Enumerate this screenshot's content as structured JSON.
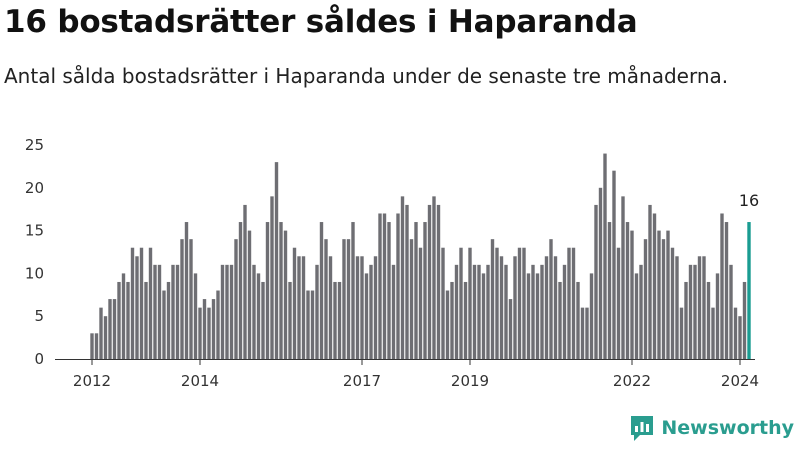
{
  "header": {
    "title": "16 bostadsrätter såldes i Haparanda",
    "subtitle": "Antal sålda bostadsrätter i Haparanda under de senaste tre månaderna."
  },
  "brand": {
    "name": "Newsworthy",
    "color": "#2a9d8f",
    "icon": "newsworthy-logo-icon"
  },
  "colors": {
    "bar": "#6e6e73",
    "highlight": "#1a9c92",
    "axis": "#333333",
    "grid": "#dddddd"
  },
  "chart_data": {
    "type": "bar",
    "title": "16 bostadsrätter såldes i Haparanda",
    "xlabel": "",
    "ylabel": "",
    "ylim": [
      0,
      25
    ],
    "y_ticks": [
      0,
      5,
      10,
      15,
      20,
      25
    ],
    "x_ticks": [
      {
        "label": "2012",
        "index": 0
      },
      {
        "label": "2014",
        "index": 24
      },
      {
        "label": "2017",
        "index": 60
      },
      {
        "label": "2019",
        "index": 84
      },
      {
        "label": "2022",
        "index": 120
      },
      {
        "label": "2024",
        "index": 144
      }
    ],
    "start": "2012-01",
    "values": [
      3,
      3,
      6,
      5,
      7,
      7,
      9,
      10,
      9,
      13,
      12,
      13,
      9,
      13,
      11,
      11,
      8,
      9,
      11,
      11,
      14,
      16,
      14,
      10,
      6,
      7,
      6,
      7,
      8,
      11,
      11,
      11,
      14,
      16,
      18,
      15,
      11,
      10,
      9,
      16,
      19,
      23,
      16,
      15,
      9,
      13,
      12,
      12,
      8,
      8,
      11,
      16,
      14,
      12,
      9,
      9,
      14,
      14,
      16,
      12,
      12,
      10,
      11,
      12,
      17,
      17,
      16,
      11,
      17,
      19,
      18,
      14,
      16,
      13,
      16,
      18,
      19,
      18,
      13,
      8,
      9,
      11,
      13,
      9,
      13,
      11,
      11,
      10,
      11,
      14,
      13,
      12,
      11,
      7,
      12,
      13,
      13,
      10,
      11,
      10,
      11,
      12,
      14,
      12,
      9,
      11,
      13,
      13,
      9,
      6,
      6,
      10,
      18,
      20,
      24,
      16,
      22,
      13,
      19,
      16,
      15,
      10,
      11,
      14,
      18,
      17,
      15,
      14,
      15,
      13,
      12,
      6,
      9,
      11,
      11,
      12,
      12,
      9,
      6,
      10,
      17,
      16,
      11,
      6,
      5,
      9,
      16
    ],
    "last_value_label": "16"
  }
}
